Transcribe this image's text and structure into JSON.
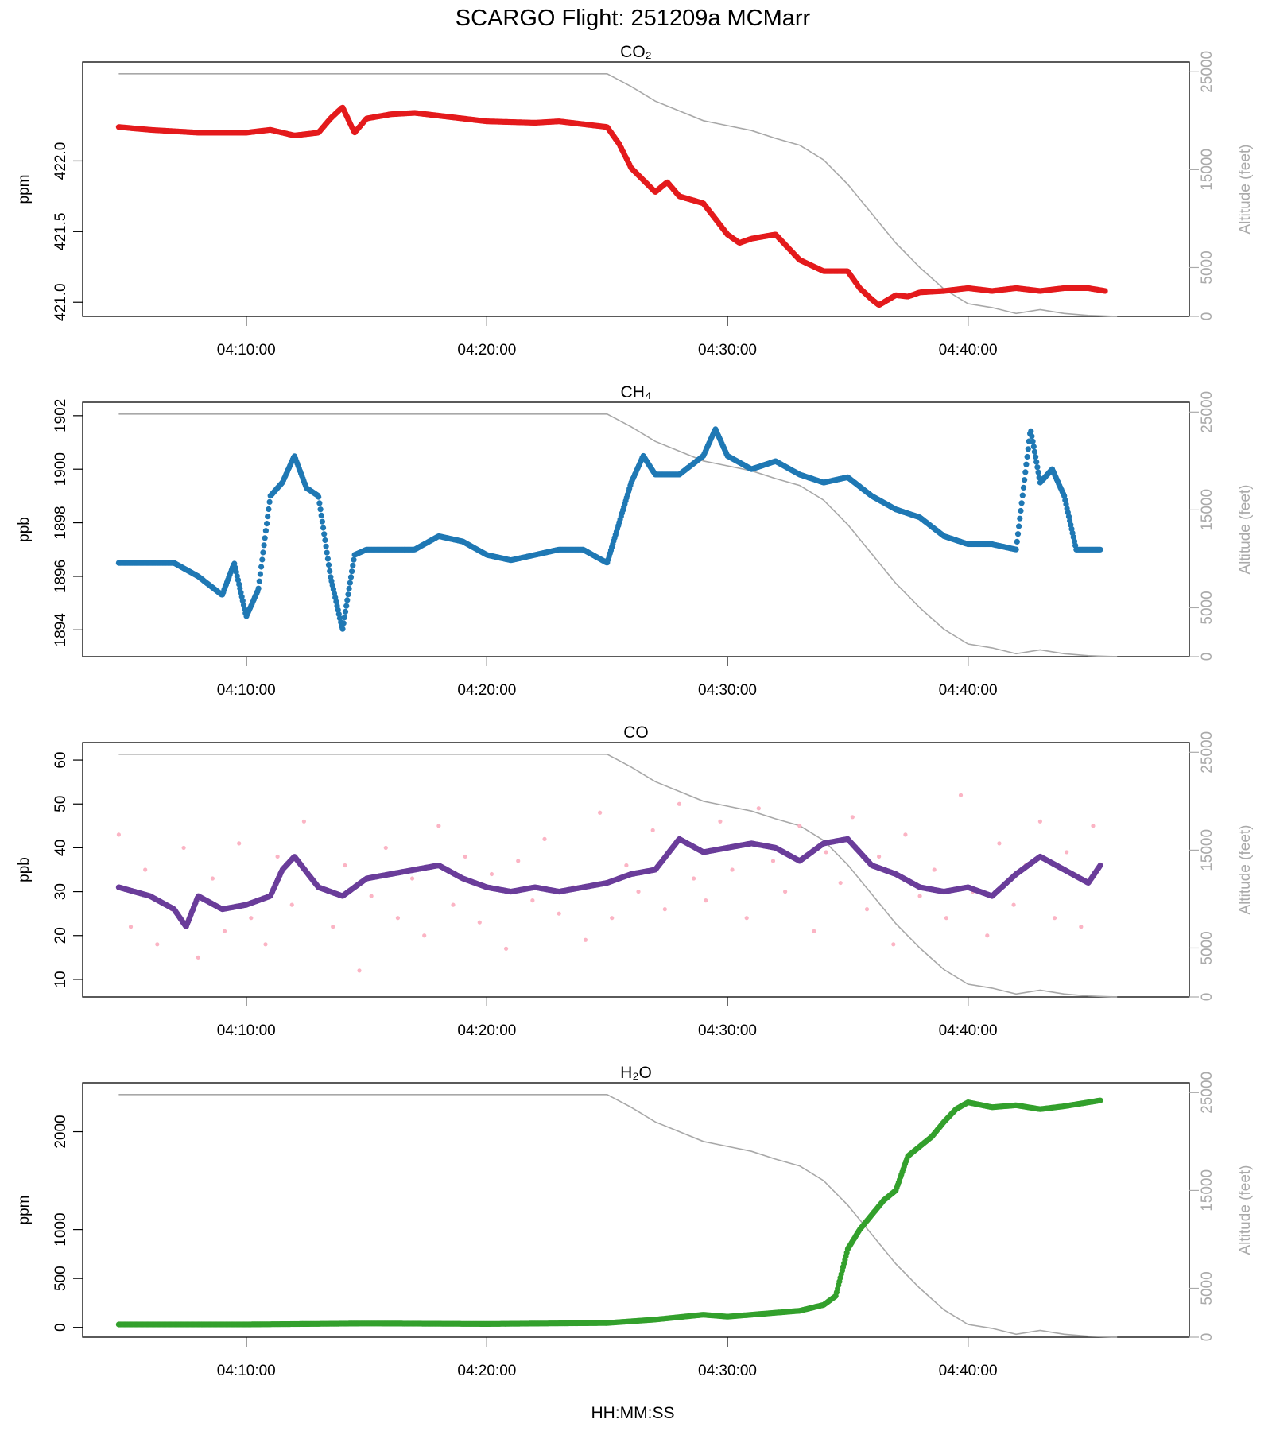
{
  "figure": {
    "title": "SCARGO Flight: 251209a  MCMarr",
    "xlabel": "HH:MM:SS",
    "altitude_label": "Altitude (feet)"
  },
  "chart_data": [
    {
      "type": "scatter",
      "title": "CO₂",
      "ylabel": "ppm",
      "ylim": [
        420.9,
        422.7
      ],
      "y_ticks": [
        "421.0",
        "421.5",
        "422.0"
      ],
      "x_ticks": [
        "04:10:00",
        "04:20:00",
        "04:30:00",
        "04:40:00"
      ],
      "xlim_minutes": [
        3.2,
        49.2
      ],
      "secondary_axis": {
        "label": "Altitude (feet)",
        "ylim": [
          0,
          26000
        ],
        "ticks": [
          "0",
          "5000",
          "15000",
          "25000"
        ]
      },
      "series": [
        {
          "name": "CO2",
          "color": "#e41a1c",
          "x": [
            4.7,
            6,
            8,
            10,
            11,
            12,
            13,
            13.5,
            14,
            14.5,
            15,
            16,
            17,
            18,
            20,
            22,
            23,
            24,
            25,
            25.5,
            26,
            27,
            27.5,
            28,
            29,
            30,
            30.5,
            31,
            32,
            33,
            34,
            35,
            35.5,
            36,
            36.3,
            37,
            37.5,
            38,
            39,
            40,
            41,
            42,
            43,
            44,
            45,
            45.7
          ],
          "y": [
            422.24,
            422.22,
            422.2,
            422.2,
            422.22,
            422.18,
            422.2,
            422.3,
            422.38,
            422.2,
            422.3,
            422.33,
            422.34,
            422.32,
            422.28,
            422.27,
            422.28,
            422.26,
            422.24,
            422.12,
            421.95,
            421.78,
            421.85,
            421.75,
            421.7,
            421.48,
            421.42,
            421.45,
            421.48,
            421.3,
            421.22,
            421.22,
            421.1,
            421.02,
            420.98,
            421.05,
            421.04,
            421.07,
            421.08,
            421.1,
            421.08,
            421.1,
            421.08,
            421.1,
            421.1,
            421.08
          ]
        }
      ],
      "altitude_ft": {
        "x": [
          4.7,
          14,
          24,
          25,
          26,
          27,
          28,
          29,
          30,
          31,
          32,
          33,
          34,
          35,
          36,
          37,
          38,
          39,
          40,
          41,
          42,
          43,
          44,
          45,
          46.2
        ],
        "y": [
          24800,
          24800,
          24800,
          24800,
          23500,
          22000,
          21000,
          20000,
          19500,
          19000,
          18200,
          17500,
          16000,
          13500,
          10500,
          7500,
          5000,
          2800,
          1300,
          900,
          300,
          700,
          300,
          100,
          0
        ]
      }
    },
    {
      "type": "scatter",
      "title": "CH₄",
      "ylabel": "ppb",
      "ylim": [
        1893,
        1902.5
      ],
      "y_ticks": [
        "1894",
        "1896",
        "1898",
        "1900",
        "1902"
      ],
      "x_ticks": [
        "04:10:00",
        "04:20:00",
        "04:30:00",
        "04:40:00"
      ],
      "xlim_minutes": [
        3.2,
        49.2
      ],
      "secondary_axis": {
        "label": "Altitude (feet)",
        "ylim": [
          0,
          26000
        ],
        "ticks": [
          "0",
          "5000",
          "15000",
          "25000"
        ]
      },
      "series": [
        {
          "name": "CH4",
          "color": "#1f78b4",
          "x": [
            4.7,
            6,
            7,
            8,
            9,
            9.5,
            10,
            10.5,
            11,
            11.5,
            12,
            12.5,
            13,
            13.5,
            14,
            14.5,
            15,
            16,
            17,
            18,
            19,
            20,
            21,
            22,
            23,
            24,
            25,
            26,
            26.5,
            27,
            28,
            29,
            29.5,
            30,
            31,
            32,
            33,
            34,
            35,
            36,
            37,
            38,
            39,
            40,
            41,
            42,
            42.6,
            43,
            43.5,
            44,
            44.5,
            45,
            45.5
          ],
          "y": [
            1896.5,
            1896.5,
            1896.5,
            1896,
            1895.3,
            1896.5,
            1894.5,
            1895.5,
            1899,
            1899.5,
            1900.5,
            1899.3,
            1899,
            1896,
            1894,
            1896.8,
            1897,
            1897,
            1897,
            1897.5,
            1897.3,
            1896.8,
            1896.6,
            1896.8,
            1897,
            1897,
            1896.5,
            1899.5,
            1900.5,
            1899.8,
            1899.8,
            1900.5,
            1901.5,
            1900.5,
            1900,
            1900.3,
            1899.8,
            1899.5,
            1899.7,
            1899,
            1898.5,
            1898.2,
            1897.5,
            1897.2,
            1897.2,
            1897,
            1901.5,
            1899.5,
            1900,
            1899,
            1897,
            1897,
            1897
          ]
        }
      ],
      "altitude_ft": {
        "x": [
          4.7,
          14,
          24,
          25,
          26,
          27,
          28,
          29,
          30,
          31,
          32,
          33,
          34,
          35,
          36,
          37,
          38,
          39,
          40,
          41,
          42,
          43,
          44,
          45,
          46.2
        ],
        "y": [
          24800,
          24800,
          24800,
          24800,
          23500,
          22000,
          21000,
          20000,
          19500,
          19000,
          18200,
          17500,
          16000,
          13500,
          10500,
          7500,
          5000,
          2800,
          1300,
          900,
          300,
          700,
          300,
          100,
          0
        ]
      }
    },
    {
      "type": "scatter",
      "title": "CO",
      "ylabel": "ppb",
      "ylim": [
        6,
        64
      ],
      "y_ticks": [
        "10",
        "20",
        "30",
        "40",
        "50",
        "60"
      ],
      "x_ticks": [
        "04:10:00",
        "04:20:00",
        "04:30:00",
        "04:40:00"
      ],
      "xlim_minutes": [
        3.2,
        49.2
      ],
      "secondary_axis": {
        "label": "Altitude (feet)",
        "ylim": [
          0,
          26000
        ],
        "ticks": [
          "0",
          "5000",
          "15000",
          "25000"
        ]
      },
      "series": [
        {
          "name": "CO smoothed",
          "color": "#6a3d9a",
          "x": [
            4.7,
            6,
            7,
            7.5,
            8,
            9,
            10,
            11,
            11.5,
            12,
            13,
            14,
            15,
            16,
            17,
            18,
            19,
            20,
            21,
            22,
            23,
            24,
            25,
            26,
            27,
            28,
            29,
            30,
            31,
            32,
            33,
            34,
            35,
            36,
            37,
            38,
            39,
            40,
            41,
            42,
            43,
            44,
            45,
            45.5
          ],
          "y": [
            31,
            29,
            26,
            22,
            29,
            26,
            27,
            29,
            35,
            38,
            31,
            29,
            33,
            34,
            35,
            36,
            33,
            31,
            30,
            31,
            30,
            31,
            32,
            34,
            35,
            42,
            39,
            40,
            41,
            40,
            37,
            41,
            42,
            36,
            34,
            31,
            30,
            31,
            29,
            34,
            38,
            35,
            32,
            36
          ]
        },
        {
          "name": "CO raw",
          "color": "#fbb4c4",
          "x": [
            4.7,
            5.2,
            5.8,
            6.3,
            6.9,
            7.4,
            8,
            8.6,
            9.1,
            9.7,
            10.2,
            10.8,
            11.3,
            11.9,
            12.4,
            13,
            13.6,
            14.1,
            14.7,
            15.2,
            15.8,
            16.3,
            16.9,
            17.4,
            18,
            18.6,
            19.1,
            19.7,
            20.2,
            20.8,
            21.3,
            21.9,
            22.4,
            23,
            23.6,
            24.1,
            24.7,
            25.2,
            25.8,
            26.3,
            26.9,
            27.4,
            28,
            28.6,
            29.1,
            29.7,
            30.2,
            30.8,
            31.3,
            31.9,
            32.4,
            33,
            33.6,
            34.1,
            34.7,
            35.2,
            35.8,
            36.3,
            36.9,
            37.4,
            38,
            38.6,
            39.1,
            39.7,
            40.2,
            40.8,
            41.3,
            41.9,
            42.4,
            43,
            43.6,
            44.1,
            44.7,
            45.2
          ],
          "y": [
            43,
            22,
            35,
            18,
            26,
            40,
            15,
            33,
            21,
            41,
            24,
            18,
            38,
            27,
            46,
            31,
            22,
            36,
            12,
            29,
            40,
            24,
            33,
            20,
            45,
            27,
            38,
            23,
            34,
            17,
            37,
            28,
            42,
            25,
            31,
            19,
            48,
            24,
            36,
            30,
            44,
            26,
            50,
            33,
            28,
            46,
            35,
            24,
            49,
            37,
            30,
            45,
            21,
            39,
            32,
            47,
            26,
            38,
            18,
            43,
            29,
            35,
            24,
            52,
            30,
            20,
            41,
            27,
            36,
            46,
            24,
            39,
            22,
            45
          ]
        }
      ],
      "altitude_ft": {
        "x": [
          4.7,
          14,
          24,
          25,
          26,
          27,
          28,
          29,
          30,
          31,
          32,
          33,
          34,
          35,
          36,
          37,
          38,
          39,
          40,
          41,
          42,
          43,
          44,
          45,
          46.2
        ],
        "y": [
          24800,
          24800,
          24800,
          24800,
          23500,
          22000,
          21000,
          20000,
          19500,
          19000,
          18200,
          17500,
          16000,
          13500,
          10500,
          7500,
          5000,
          2800,
          1300,
          900,
          300,
          700,
          300,
          100,
          0
        ]
      }
    },
    {
      "type": "scatter",
      "title": "H₂O",
      "ylabel": "ppm",
      "ylim": [
        -100,
        2500
      ],
      "y_ticks": [
        "0",
        "500",
        "1000",
        "2000"
      ],
      "x_ticks": [
        "04:10:00",
        "04:20:00",
        "04:30:00",
        "04:40:00"
      ],
      "xlim_minutes": [
        3.2,
        49.2
      ],
      "secondary_axis": {
        "label": "Altitude (feet)",
        "ylim": [
          0,
          26000
        ],
        "ticks": [
          "0",
          "5000",
          "15000",
          "25000"
        ]
      },
      "series": [
        {
          "name": "H2O",
          "color": "#33a02c",
          "x": [
            4.7,
            10,
            15,
            20,
            25,
            27,
            29,
            30,
            31,
            32,
            33,
            34,
            34.5,
            35,
            35.5,
            36,
            36.5,
            37,
            37.5,
            38,
            38.5,
            39,
            39.5,
            40,
            41,
            42,
            43,
            44,
            45,
            45.5
          ],
          "y": [
            30,
            30,
            40,
            35,
            45,
            80,
            130,
            110,
            130,
            150,
            170,
            230,
            320,
            800,
            1000,
            1150,
            1300,
            1400,
            1750,
            1850,
            1950,
            2100,
            2230,
            2300,
            2250,
            2270,
            2230,
            2260,
            2300,
            2320
          ]
        }
      ],
      "altitude_ft": {
        "x": [
          4.7,
          14,
          24,
          25,
          26,
          27,
          28,
          29,
          30,
          31,
          32,
          33,
          34,
          35,
          36,
          37,
          38,
          39,
          40,
          41,
          42,
          43,
          44,
          45,
          46.2
        ],
        "y": [
          24800,
          24800,
          24800,
          24800,
          23500,
          22000,
          21000,
          20000,
          19500,
          19000,
          18200,
          17500,
          16000,
          13500,
          10500,
          7500,
          5000,
          2800,
          1300,
          900,
          300,
          700,
          300,
          100,
          0
        ]
      }
    }
  ]
}
